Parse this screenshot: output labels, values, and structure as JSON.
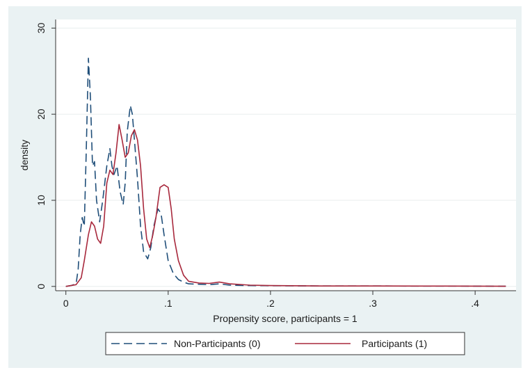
{
  "chart_data": {
    "type": "line",
    "xlabel": "Propensity score, participants = 1",
    "ylabel": "density",
    "xlim": [
      -0.01,
      0.44
    ],
    "ylim": [
      -0.5,
      31
    ],
    "xticks": [
      0,
      0.1,
      0.2,
      0.3,
      0.4
    ],
    "xtick_labels": [
      "0",
      ".1",
      ".2",
      ".3",
      ".4"
    ],
    "yticks": [
      0,
      10,
      20,
      30
    ],
    "ytick_labels": [
      "0",
      "10",
      "20",
      "30"
    ],
    "grid": "horizontal",
    "legend_position": "bottom",
    "colors": {
      "panel_bg": "#eaf2f3",
      "plot_bg": "#ffffff"
    },
    "series": [
      {
        "name": "Non-Participants (0)",
        "color": "#1f4e79",
        "dash": "long-dash",
        "x": [
          0.0,
          0.005,
          0.01,
          0.012,
          0.014,
          0.016,
          0.018,
          0.02,
          0.022,
          0.024,
          0.026,
          0.028,
          0.03,
          0.033,
          0.036,
          0.04,
          0.043,
          0.045,
          0.047,
          0.05,
          0.053,
          0.056,
          0.058,
          0.06,
          0.063,
          0.065,
          0.067,
          0.07,
          0.073,
          0.076,
          0.08,
          0.083,
          0.086,
          0.09,
          0.093,
          0.096,
          0.1,
          0.105,
          0.11,
          0.115,
          0.12,
          0.13,
          0.14,
          0.15,
          0.16,
          0.18,
          0.2,
          0.25,
          0.3,
          0.35,
          0.4,
          0.43
        ],
        "y": [
          0.0,
          0.1,
          0.3,
          2.0,
          6.0,
          8.0,
          7.0,
          16.0,
          26.5,
          22.0,
          14.0,
          14.5,
          10.0,
          7.5,
          10.0,
          14.0,
          16.0,
          14.0,
          13.0,
          14.0,
          11.0,
          9.5,
          12.0,
          18.0,
          21.0,
          20.0,
          17.0,
          12.5,
          7.0,
          4.0,
          3.2,
          4.5,
          7.0,
          9.0,
          8.5,
          6.0,
          3.0,
          1.5,
          0.8,
          0.5,
          0.3,
          0.25,
          0.2,
          0.3,
          0.15,
          0.1,
          0.08,
          0.05,
          0.05,
          0.04,
          0.03,
          0.02
        ]
      },
      {
        "name": "Participants (1)",
        "color": "#a8283c",
        "dash": "solid",
        "x": [
          0.0,
          0.01,
          0.015,
          0.018,
          0.022,
          0.025,
          0.028,
          0.031,
          0.034,
          0.037,
          0.04,
          0.043,
          0.046,
          0.049,
          0.052,
          0.055,
          0.058,
          0.061,
          0.064,
          0.067,
          0.07,
          0.073,
          0.076,
          0.079,
          0.082,
          0.085,
          0.088,
          0.092,
          0.096,
          0.1,
          0.103,
          0.106,
          0.11,
          0.115,
          0.12,
          0.13,
          0.14,
          0.15,
          0.16,
          0.18,
          0.2,
          0.25,
          0.3,
          0.35,
          0.4,
          0.43
        ],
        "y": [
          0.0,
          0.2,
          1.0,
          3.0,
          6.0,
          7.5,
          7.0,
          5.5,
          5.0,
          7.0,
          12.0,
          13.5,
          13.0,
          15.5,
          18.8,
          17.0,
          15.0,
          15.5,
          17.5,
          18.2,
          17.0,
          14.0,
          9.0,
          5.5,
          4.5,
          6.0,
          8.0,
          11.5,
          11.8,
          11.5,
          9.0,
          5.5,
          3.0,
          1.3,
          0.6,
          0.4,
          0.35,
          0.5,
          0.3,
          0.15,
          0.1,
          0.05,
          0.05,
          0.04,
          0.03,
          0.02
        ]
      }
    ]
  }
}
